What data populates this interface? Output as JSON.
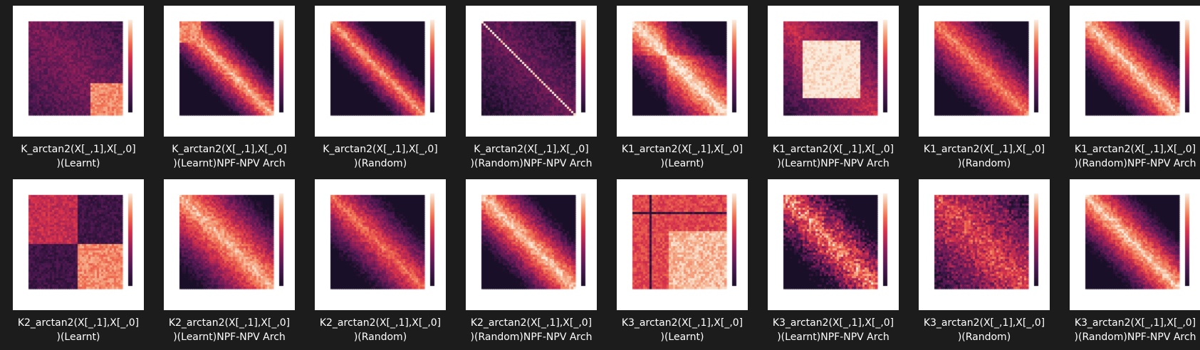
{
  "tiles": [
    {
      "label": "K_arctan2(X[_,1],X[_,0]\n)(Learnt)",
      "pattern": "two-block",
      "colorbar_icon": "colorbar-icon"
    },
    {
      "label": "K_arctan2(X[_,1],X[_,0]\n)(Learnt)NPF-NPV Arch",
      "pattern": "diagonal-bright",
      "colorbar_icon": "colorbar-icon"
    },
    {
      "label": "K_arctan2(X[_,1],X[_,0]\n)(Random)",
      "pattern": "diagonal",
      "colorbar_icon": "colorbar-icon"
    },
    {
      "label": "K_arctan2(X[_,1],X[_,0]\n)(Random)NPF-NPV Arch",
      "pattern": "thin-diagonal",
      "colorbar_icon": "colorbar-icon"
    },
    {
      "label": "K1_arctan2(X[_,1],X[_,0]\n)(Learnt)",
      "pattern": "blocks",
      "colorbar_icon": "colorbar-icon"
    },
    {
      "label": "K1_arctan2(X[_,1],X[_,0]\n)(Learnt)NPF-NPV Arch",
      "pattern": "big-center-block",
      "colorbar_icon": "colorbar-icon"
    },
    {
      "label": "K1_arctan2(X[_,1],X[_,0]\n)(Random)",
      "pattern": "blocks-soft",
      "colorbar_icon": "colorbar-icon"
    },
    {
      "label": "K1_arctan2(X[_,1],X[_,0]\n)(Random)NPF-NPV Arch",
      "pattern": "wide-diagonal",
      "colorbar_icon": "colorbar-icon"
    },
    {
      "label": "K2_arctan2(X[_,1],X[_,0]\n)(Learnt)",
      "pattern": "quad",
      "colorbar_icon": "colorbar-icon"
    },
    {
      "label": "K2_arctan2(X[_,1],X[_,0]\n)(Learnt)NPF-NPV Arch",
      "pattern": "bright-blocks",
      "colorbar_icon": "colorbar-icon"
    },
    {
      "label": "K2_arctan2(X[_,1],X[_,0]\n)(Random)",
      "pattern": "patchy-diagonal",
      "colorbar_icon": "colorbar-icon"
    },
    {
      "label": "K2_arctan2(X[_,1],X[_,0]\n)(Random)NPF-NPV Arch",
      "pattern": "wide-diagonal",
      "colorbar_icon": "colorbar-icon"
    },
    {
      "label": "K3_arctan2(X[_,1],X[_,0]\n)(Learnt)",
      "pattern": "uniform-lines",
      "colorbar_icon": "colorbar-icon"
    },
    {
      "label": "K3_arctan2(X[_,1],X[_,0]\n)(Learnt)NPF-NPV Arch",
      "pattern": "noisy-diagonal",
      "colorbar_icon": "colorbar-icon"
    },
    {
      "label": "K3_arctan2(X[_,1],X[_,0]\n)(Random)",
      "pattern": "patchy",
      "colorbar_icon": "colorbar-icon"
    },
    {
      "label": "K3_arctan2(X[_,1],X[_,0]\n)(Random)NPF-NPV Arch",
      "pattern": "wide-diagonal",
      "colorbar_icon": "colorbar-icon"
    }
  ]
}
